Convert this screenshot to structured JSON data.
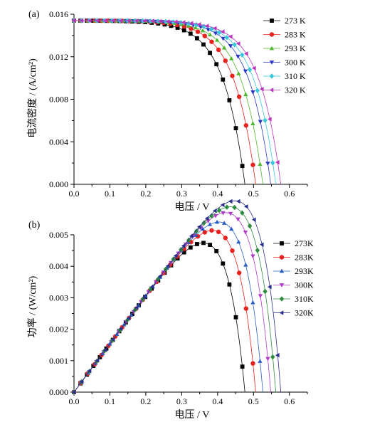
{
  "chart_data": [
    {
      "panel_label": "(a)",
      "type": "line",
      "xlabel": "电压 / V",
      "ylabel": "电流密度 / (A/cm²)",
      "xlim": [
        0.0,
        0.65
      ],
      "ylim": [
        0.0,
        0.016
      ],
      "xticks": [
        "0.0",
        "0.1",
        "0.2",
        "0.3",
        "0.4",
        "0.5",
        "0.6"
      ],
      "xtick_values": [
        0.0,
        0.1,
        0.2,
        0.3,
        0.4,
        0.5,
        0.6
      ],
      "yticks": [
        "0.000",
        "0.004",
        "0.008",
        "0.012",
        "0.016"
      ],
      "ytick_values": [
        0.0,
        0.004,
        0.008,
        0.012,
        0.016
      ],
      "legend_position": "top-right",
      "series": [
        {
          "name": "273 K",
          "marker": "square",
          "color": "#000000",
          "voc": 0.476
        },
        {
          "name": "283 K",
          "marker": "circle",
          "color": "#e8221f",
          "voc": 0.506
        },
        {
          "name": "293 K",
          "marker": "triangle-up",
          "color": "#50b830",
          "voc": 0.526
        },
        {
          "name": "300 K",
          "marker": "triangle-down",
          "color": "#2b39c6",
          "voc": 0.548
        },
        {
          "name": "310 K",
          "marker": "diamond",
          "color": "#38c8dc",
          "voc": 0.562
        },
        {
          "name": "320 K",
          "marker": "triangle-left",
          "color": "#bc33bc",
          "voc": 0.576
        }
      ],
      "model": {
        "isc": 0.0154,
        "n_points_per_series": 27
      }
    },
    {
      "panel_label": "(b)",
      "type": "line",
      "xlabel": "电压 / V",
      "ylabel": "功率 / (W/cm²)",
      "xlim": [
        0.0,
        0.65
      ],
      "ylim": [
        0.0,
        0.005
      ],
      "xticks": [
        "0.0",
        "0.1",
        "0.2",
        "0.3",
        "0.4",
        "0.5",
        "0.6"
      ],
      "xtick_values": [
        0.0,
        0.1,
        0.2,
        0.3,
        0.4,
        0.5,
        0.6
      ],
      "yticks": [
        "0.000",
        "0.001",
        "0.002",
        "0.003",
        "0.004",
        "0.005"
      ],
      "ytick_values": [
        0.0,
        0.001,
        0.002,
        0.003,
        0.004,
        0.005
      ],
      "legend_position": "right",
      "series": [
        {
          "name": "273K",
          "marker": "square",
          "color": "#000000",
          "voc": 0.476
        },
        {
          "name": "283K",
          "marker": "circle",
          "color": "#e8221f",
          "voc": 0.506
        },
        {
          "name": "293K",
          "marker": "triangle-up",
          "color": "#2b5fc8",
          "voc": 0.526
        },
        {
          "name": "300K",
          "marker": "triangle-down",
          "color": "#b13cc8",
          "voc": 0.548
        },
        {
          "name": "310K",
          "marker": "diamond",
          "color": "#2e8c3e",
          "voc": 0.562
        },
        {
          "name": "320K",
          "marker": "triangle-left",
          "color": "#2b2f8c",
          "voc": 0.576
        }
      ],
      "model": {
        "isc": 0.0154,
        "n_points_per_series": 27
      }
    }
  ]
}
